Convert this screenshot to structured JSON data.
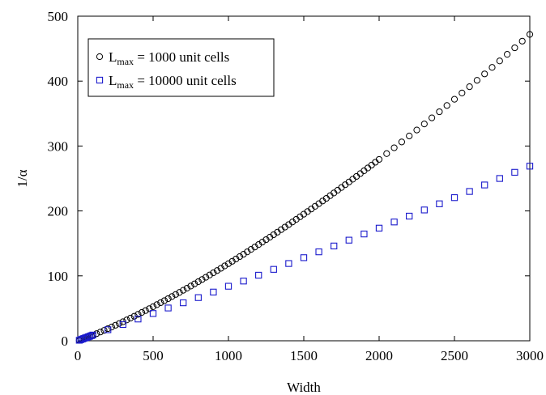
{
  "chart_data": {
    "type": "scatter",
    "title": "",
    "xlabel": "Width",
    "ylabel": "1/α",
    "xlim": [
      0,
      3000
    ],
    "ylim": [
      0,
      500
    ],
    "xticks": [
      0,
      500,
      1000,
      1500,
      2000,
      2500,
      3000
    ],
    "yticks": [
      0,
      100,
      200,
      300,
      400,
      500
    ],
    "xtick_labels": [
      "0",
      "500",
      "1000",
      "1500",
      "2000",
      "2500",
      "3000"
    ],
    "ytick_labels": [
      "0",
      "100",
      "200",
      "300",
      "400",
      "500"
    ],
    "grid": false,
    "legend_position": "top-left",
    "series": [
      {
        "name": "L",
        "subscript": "max",
        "rest": " = 1000 unit cells",
        "marker": "circle",
        "color": "#000000",
        "x": [
          10,
          20,
          30,
          40,
          50,
          60,
          70,
          80,
          90,
          100,
          125,
          150,
          175,
          200,
          225,
          250,
          275,
          300,
          325,
          350,
          375,
          400,
          425,
          450,
          475,
          500,
          525,
          550,
          575,
          600,
          625,
          650,
          675,
          700,
          725,
          750,
          775,
          800,
          825,
          850,
          875,
          900,
          925,
          950,
          975,
          1000,
          1025,
          1050,
          1075,
          1100,
          1125,
          1150,
          1175,
          1200,
          1225,
          1250,
          1275,
          1300,
          1325,
          1350,
          1375,
          1400,
          1425,
          1450,
          1475,
          1500,
          1525,
          1550,
          1575,
          1600,
          1625,
          1650,
          1675,
          1700,
          1725,
          1750,
          1775,
          1800,
          1825,
          1850,
          1875,
          1900,
          1925,
          1950,
          1975,
          2000,
          2050,
          2100,
          2150,
          2200,
          2250,
          2300,
          2350,
          2400,
          2450,
          2500,
          2550,
          2600,
          2650,
          2700,
          2750,
          2800,
          2850,
          2900,
          2950,
          3000
        ],
        "y": [
          0.6,
          1.4,
          2.2,
          3.1,
          4.0,
          4.9,
          5.8,
          6.7,
          7.7,
          8.6,
          11,
          13.5,
          16,
          18.6,
          21.2,
          23.9,
          26.6,
          29.3,
          32.1,
          34.9,
          37.8,
          40.7,
          43.6,
          46.5,
          49.5,
          52.5,
          55.6,
          58.7,
          61.8,
          64.9,
          68.1,
          71.3,
          74.5,
          77.8,
          81,
          84.3,
          87.7,
          91,
          94.4,
          97.8,
          101.3,
          104.7,
          108.2,
          111.7,
          115.3,
          118.8,
          122.4,
          126,
          129.7,
          133.3,
          137,
          140.7,
          144.4,
          148.2,
          152,
          155.8,
          159.6,
          163.4,
          167.3,
          171.2,
          175.1,
          179,
          183,
          187,
          191,
          195,
          199,
          203,
          207.1,
          211.2,
          215.3,
          219.4,
          223.6,
          227.7,
          231.9,
          236.1,
          240.4,
          244.6,
          248.9,
          253.2,
          257.5,
          261.8,
          266.2,
          270.6,
          275,
          279.4,
          288.3,
          297.3,
          306.3,
          315.5,
          324.7,
          334,
          343.4,
          352.8,
          362.4,
          372,
          381.7,
          391.4,
          401.2,
          411.1,
          421.1,
          431.1,
          441.2,
          451.3,
          461.6,
          471.9
        ]
      },
      {
        "name": "L",
        "subscript": "max",
        "rest": " = 10000 unit cells",
        "marker": "square",
        "color": "#1a1acc",
        "x": [
          10,
          20,
          30,
          40,
          50,
          60,
          70,
          80,
          90,
          100,
          200,
          300,
          400,
          500,
          600,
          700,
          800,
          900,
          1000,
          1100,
          1200,
          1300,
          1400,
          1500,
          1600,
          1700,
          1800,
          1900,
          2000,
          2100,
          2200,
          2300,
          2400,
          2500,
          2600,
          2700,
          2800,
          2900,
          3000
        ],
        "y": [
          0.8,
          1.7,
          2.6,
          3.5,
          4.4,
          5.2,
          6.1,
          7.0,
          7.9,
          8.8,
          17,
          25,
          33.5,
          42,
          50.5,
          58.5,
          66.5,
          75,
          84,
          92,
          101,
          110,
          119,
          128,
          137,
          146,
          155,
          164.5,
          173.5,
          183,
          192,
          201.5,
          211,
          220.5,
          230,
          240,
          250,
          259.5,
          269
        ]
      }
    ]
  }
}
